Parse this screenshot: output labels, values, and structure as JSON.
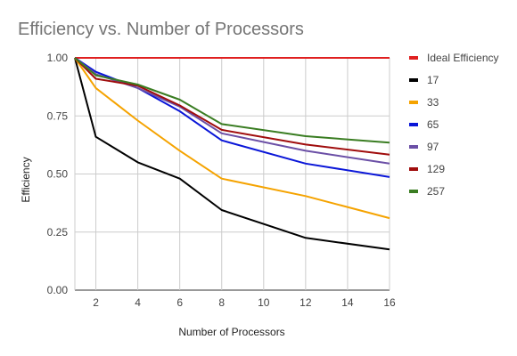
{
  "chart_data": {
    "type": "line",
    "title": "Efficiency vs. Number of Processors",
    "xlabel": "Number of Processors",
    "ylabel": "Efficiency",
    "xlim": [
      1,
      16
    ],
    "ylim": [
      0,
      1
    ],
    "x_ticks": [
      2,
      4,
      6,
      8,
      10,
      12,
      14,
      16
    ],
    "y_ticks": [
      0,
      0.25,
      0.5,
      0.75,
      1
    ],
    "y_tick_labels": [
      "0.00",
      "0.25",
      "0.50",
      "0.75",
      "1.00"
    ],
    "grid": true,
    "legend_position": "right",
    "series": [
      {
        "name": "Ideal Efficiency",
        "color": "#e02020",
        "x": [
          1,
          16
        ],
        "y": [
          1.0,
          1.0
        ]
      },
      {
        "name": "17",
        "color": "#000000",
        "x": [
          1,
          2,
          4,
          6,
          8,
          12,
          16
        ],
        "y": [
          1.0,
          0.66,
          0.55,
          0.48,
          0.345,
          0.225,
          0.175
        ]
      },
      {
        "name": "33",
        "color": "#f5a300",
        "x": [
          1,
          2,
          4,
          6,
          8,
          12,
          16
        ],
        "y": [
          1.0,
          0.87,
          0.73,
          0.6,
          0.48,
          0.405,
          0.31
        ]
      },
      {
        "name": "65",
        "color": "#0a16d8",
        "x": [
          1,
          2,
          4,
          6,
          8,
          12,
          16
        ],
        "y": [
          1.0,
          0.94,
          0.87,
          0.77,
          0.645,
          0.545,
          0.487
        ]
      },
      {
        "name": "97",
        "color": "#6b4fa6",
        "x": [
          1,
          2,
          4,
          6,
          8,
          12,
          16
        ],
        "y": [
          1.0,
          0.93,
          0.87,
          0.79,
          0.675,
          0.6,
          0.545
        ]
      },
      {
        "name": "129",
        "color": "#a00d0d",
        "x": [
          1,
          2,
          4,
          6,
          8,
          12,
          16
        ],
        "y": [
          1.0,
          0.91,
          0.88,
          0.795,
          0.69,
          0.627,
          0.583
        ]
      },
      {
        "name": "257",
        "color": "#3a7d22",
        "x": [
          1,
          2,
          4,
          6,
          8,
          12,
          16
        ],
        "y": [
          1.0,
          0.925,
          0.885,
          0.82,
          0.715,
          0.663,
          0.635
        ]
      }
    ]
  }
}
